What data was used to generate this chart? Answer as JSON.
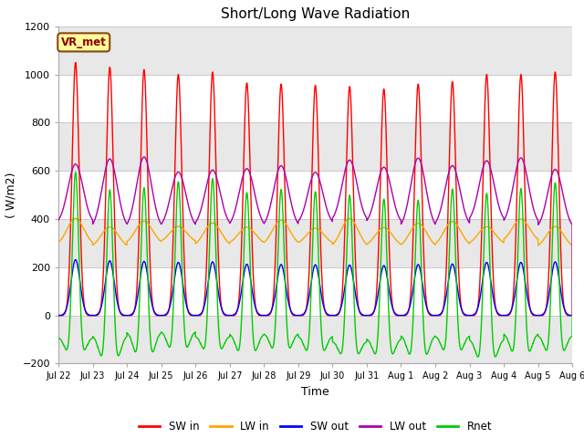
{
  "title": "Short/Long Wave Radiation",
  "ylabel": "( W/m2)",
  "xlabel": "Time",
  "ylim": [
    -200,
    1200
  ],
  "yticks": [
    -200,
    0,
    200,
    400,
    600,
    800,
    1000,
    1200
  ],
  "background_color": "#ffffff",
  "plot_bg_color": "#ffffff",
  "band_color": "#e8e8e8",
  "series": {
    "SW_in": {
      "color": "#ff0000",
      "label": "SW in"
    },
    "LW_in": {
      "color": "#ffa500",
      "label": "LW in"
    },
    "SW_out": {
      "color": "#0000ff",
      "label": "SW out"
    },
    "LW_out": {
      "color": "#aa00aa",
      "label": "LW out"
    },
    "Rnet": {
      "color": "#00cc00",
      "label": "Rnet"
    }
  },
  "xtick_labels": [
    "Jul 22",
    "Jul 23",
    "Jul 24",
    "Jul 25",
    "Jul 26",
    "Jul 27",
    "Jul 28",
    "Jul 29",
    "Jul 30",
    "Jul 31",
    "Aug 1",
    "Aug 2",
    "Aug 3",
    "Aug 4",
    "Aug 5",
    "Aug 6"
  ],
  "site_label": "VR_met",
  "n_days": 15,
  "dt_per_day": 288
}
